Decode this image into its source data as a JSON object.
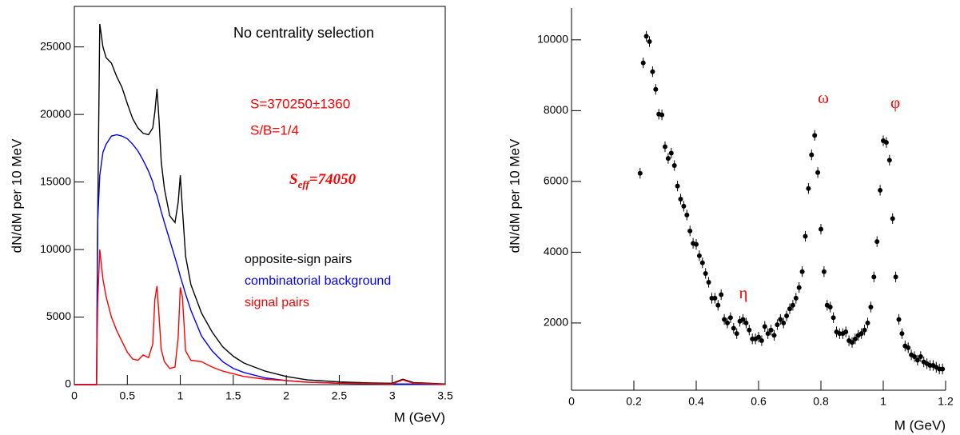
{
  "chart_data": [
    {
      "type": "line",
      "ylabel": "dN/dM per 10 MeV",
      "xlabel": "M (GeV)",
      "annotations": [
        "No centrality selection",
        "S=370250±1360",
        "S/B=1/4"
      ],
      "s_eff": {
        "symbol": "S",
        "subscript": "eff",
        "value": "=74050"
      },
      "xlim": [
        0,
        3.5
      ],
      "ylim": [
        0,
        28000
      ],
      "xticks": [
        0,
        0.5,
        1,
        1.5,
        2,
        2.5,
        3,
        3.5
      ],
      "yticks": [
        0,
        5000,
        10000,
        15000,
        20000,
        25000
      ],
      "x": [
        0,
        0.21,
        0.22,
        0.24,
        0.27,
        0.3,
        0.35,
        0.4,
        0.45,
        0.5,
        0.55,
        0.6,
        0.65,
        0.7,
        0.74,
        0.76,
        0.78,
        0.8,
        0.82,
        0.85,
        0.9,
        0.95,
        0.98,
        1.0,
        1.02,
        1.05,
        1.1,
        1.2,
        1.3,
        1.4,
        1.5,
        1.6,
        1.8,
        2.0,
        2.2,
        2.5,
        2.8,
        3.0,
        3.1,
        3.2,
        3.5
      ],
      "series": [
        {
          "name": "opposite-sign pairs",
          "color": "#000000",
          "values": [
            0,
            0,
            12000,
            26700,
            25000,
            24200,
            23800,
            22800,
            22000,
            20800,
            19700,
            19000,
            18600,
            18500,
            19000,
            20200,
            21900,
            19500,
            16500,
            14500,
            12500,
            12000,
            13500,
            15500,
            13000,
            9500,
            7400,
            5300,
            3900,
            2800,
            2100,
            1600,
            1000,
            600,
            350,
            200,
            120,
            100,
            400,
            150,
            50
          ]
        },
        {
          "name": "combinatorial background",
          "color": "#0000ff",
          "values": [
            0,
            0,
            12000,
            15500,
            17200,
            17800,
            18400,
            18500,
            18400,
            18200,
            17800,
            17300,
            16600,
            15800,
            15000,
            14400,
            14000,
            13400,
            12800,
            12000,
            10700,
            9400,
            8600,
            8000,
            7500,
            6700,
            5500,
            3600,
            2500,
            1700,
            1200,
            900,
            500,
            300,
            180,
            100,
            60,
            50,
            50,
            40,
            20
          ]
        },
        {
          "name": "signal pairs",
          "color": "#ff0000",
          "values": [
            0,
            0,
            6000,
            10000,
            7800,
            6500,
            5000,
            4000,
            3200,
            2400,
            1900,
            1800,
            2200,
            2000,
            3000,
            6300,
            7300,
            5000,
            2600,
            1700,
            1200,
            1300,
            3500,
            7200,
            6500,
            2500,
            1800,
            1700,
            1300,
            1000,
            800,
            600,
            400,
            300,
            180,
            100,
            70,
            50,
            350,
            100,
            30
          ]
        }
      ]
    },
    {
      "type": "scatter",
      "ylabel": "dN/dM per 10 MeV",
      "xlabel": "M (GeV)",
      "annotations": [
        "η",
        "ω",
        "φ"
      ],
      "annotation_color": "#ff0000",
      "xlim": [
        0,
        1.2
      ],
      "ylim": [
        100,
        10900
      ],
      "xticks": [
        0,
        0.2,
        0.4,
        0.6,
        0.8,
        1,
        1.2
      ],
      "yticks": [
        2000,
        4000,
        6000,
        8000,
        10000
      ],
      "color": "#000000",
      "x": [
        0.22,
        0.23,
        0.24,
        0.25,
        0.26,
        0.27,
        0.28,
        0.29,
        0.3,
        0.31,
        0.32,
        0.33,
        0.34,
        0.35,
        0.36,
        0.37,
        0.38,
        0.39,
        0.4,
        0.41,
        0.42,
        0.43,
        0.44,
        0.45,
        0.46,
        0.47,
        0.48,
        0.49,
        0.5,
        0.51,
        0.52,
        0.53,
        0.54,
        0.55,
        0.56,
        0.57,
        0.58,
        0.59,
        0.6,
        0.61,
        0.62,
        0.63,
        0.64,
        0.65,
        0.66,
        0.67,
        0.68,
        0.69,
        0.7,
        0.71,
        0.72,
        0.73,
        0.74,
        0.75,
        0.76,
        0.77,
        0.78,
        0.79,
        0.8,
        0.81,
        0.82,
        0.83,
        0.84,
        0.85,
        0.86,
        0.87,
        0.88,
        0.89,
        0.9,
        0.91,
        0.92,
        0.93,
        0.94,
        0.95,
        0.96,
        0.97,
        0.98,
        0.99,
        1.0,
        1.01,
        1.02,
        1.03,
        1.04,
        1.05,
        1.06,
        1.07,
        1.08,
        1.09,
        1.1,
        1.11,
        1.12,
        1.13,
        1.14,
        1.15,
        1.16,
        1.17,
        1.18,
        1.19
      ],
      "y": [
        6230,
        9350,
        10100,
        9950,
        9100,
        8600,
        7900,
        7880,
        6980,
        6650,
        6800,
        6450,
        5870,
        5500,
        5300,
        5050,
        4600,
        4250,
        4220,
        3900,
        3700,
        3400,
        3150,
        2700,
        2700,
        2500,
        2800,
        2100,
        2000,
        2150,
        1850,
        1700,
        2050,
        2100,
        2000,
        1800,
        1550,
        1550,
        1600,
        1500,
        1900,
        1700,
        1800,
        1650,
        1950,
        2100,
        2000,
        2200,
        2400,
        2500,
        2700,
        3000,
        3450,
        4450,
        5800,
        6750,
        7300,
        6250,
        4650,
        3450,
        2500,
        2450,
        2150,
        1750,
        1700,
        1700,
        1750,
        1500,
        1450,
        1550,
        1650,
        1700,
        1800,
        2000,
        2450,
        3300,
        4300,
        5750,
        7150,
        7100,
        6600,
        4950,
        3300,
        2100,
        1700,
        1350,
        1300,
        1100,
        1050,
        950,
        1050,
        900,
        850,
        800,
        800,
        750,
        700,
        700
      ],
      "errors": [
        150,
        150,
        150,
        150,
        150,
        150,
        150,
        150,
        150,
        150,
        150,
        150,
        150,
        150,
        150,
        150,
        150,
        150,
        150,
        150,
        150,
        150,
        150,
        150,
        150,
        150,
        150,
        150,
        150,
        150,
        150,
        150,
        150,
        150,
        150,
        150,
        150,
        150,
        150,
        150,
        150,
        150,
        150,
        150,
        150,
        150,
        150,
        150,
        150,
        150,
        150,
        150,
        150,
        150,
        150,
        150,
        150,
        150,
        150,
        150,
        150,
        150,
        150,
        150,
        150,
        150,
        150,
        150,
        150,
        150,
        150,
        150,
        150,
        150,
        150,
        150,
        150,
        150,
        150,
        150,
        150,
        150,
        150,
        150,
        150,
        150,
        150,
        150,
        150,
        150,
        150,
        150,
        150,
        150,
        150,
        150,
        150,
        150
      ]
    }
  ]
}
